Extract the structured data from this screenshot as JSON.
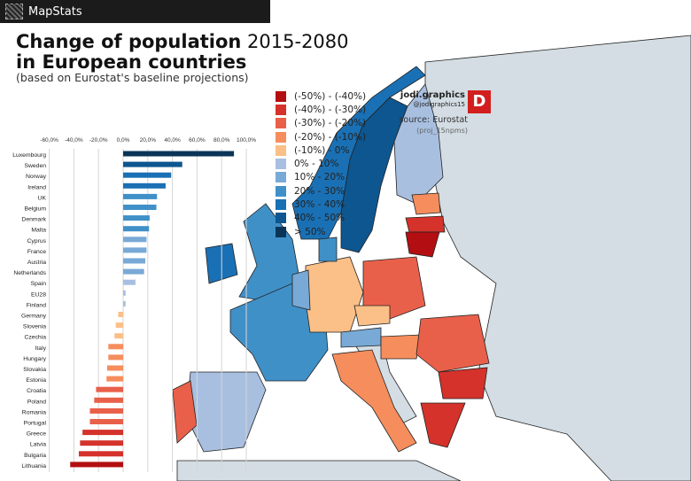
{
  "app": {
    "name": "MapStats"
  },
  "title": {
    "bold": "Change of population",
    "rest": " 2015-2080",
    "line2": "in European countries",
    "subtitle": "(based on Eurostat's baseline projections)"
  },
  "brand": {
    "name": "jodi.graphics",
    "handle": "@jodigraphics15",
    "logo": "JD"
  },
  "source": {
    "label": "source: Eurostat",
    "code": "(proj_15npms)"
  },
  "legend": [
    {
      "label": "(-50%) - (-40%)",
      "color": "#b30f12"
    },
    {
      "label": "(-40%) - (-30%)",
      "color": "#d4322b"
    },
    {
      "label": "(-30%) - (-20%)",
      "color": "#e9604a"
    },
    {
      "label": "(-20%) - (-10%)",
      "color": "#f58d5d"
    },
    {
      "label": "(-10%) - 0%",
      "color": "#fbbf88"
    },
    {
      "label": "0% - 10%",
      "color": "#a8bfe0"
    },
    {
      "label": "10% - 20%",
      "color": "#79a9d6"
    },
    {
      "label": "20% - 30%",
      "color": "#4090c8"
    },
    {
      "label": "30% - 40%",
      "color": "#1a70b4"
    },
    {
      "label": "40% - 50%",
      "color": "#0d5690"
    },
    {
      "label": "> 50%",
      "color": "#0a3558"
    }
  ],
  "chart_data": {
    "type": "bar",
    "orientation": "horizontal",
    "xlim": [
      -60,
      100
    ],
    "ticks": [
      "-60,0%",
      "-40,0%",
      "-20,0%",
      "0,0%",
      "20,0%",
      "40,0%",
      "60,0%",
      "80,0%",
      "100,0%"
    ],
    "tick_values": [
      -60,
      -40,
      -20,
      0,
      20,
      40,
      60,
      80,
      100
    ],
    "categories": [
      "Luxembourg",
      "Sweden",
      "Norway",
      "Ireland",
      "UK",
      "Belgium",
      "Denmark",
      "Malta",
      "Cyprus",
      "France",
      "Austria",
      "Netherlands",
      "Spain",
      "EU28",
      "Finland",
      "Germany",
      "Slovenia",
      "Czechia",
      "Italy",
      "Hungary",
      "Slovakia",
      "Estonia",
      "Croatia",
      "Poland",
      "Romania",
      "Portugal",
      "Greece",
      "Latvia",
      "Bulgaria",
      "Lithuania"
    ],
    "values": [
      90,
      48,
      39,
      34.5,
      27.5,
      27,
      21.5,
      21,
      19,
      19,
      18,
      17,
      10,
      2,
      2,
      -4,
      -6,
      -7,
      -12,
      -12,
      -13,
      -13.5,
      -22,
      -23.5,
      -27,
      -27,
      -33,
      -35,
      -36,
      -43
    ]
  }
}
